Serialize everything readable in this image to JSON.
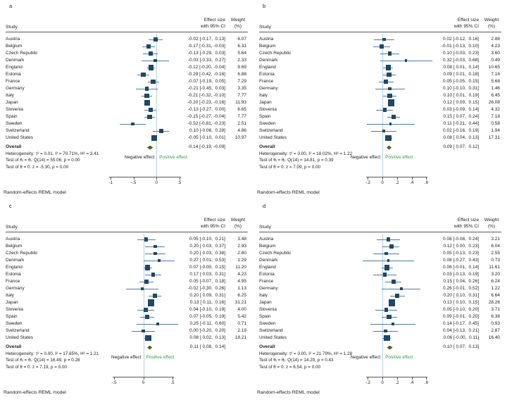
{
  "colors": {
    "marker": "#1e4866",
    "ci_line": "#4e7ca8",
    "zero_line": "#b5cfe3",
    "diamond": "#4f661e",
    "positive_label": "#2f9e3e",
    "text": "#1c1c1c",
    "axis": "#555555"
  },
  "chart_data": [
    {
      "type": "forest",
      "letter": "a",
      "study_header": "Study",
      "effect_header": [
        "Effect size",
        "with 95% CI"
      ],
      "weight_header": [
        "Weight",
        "(%)"
      ],
      "studies": [
        {
          "name": "Austria",
          "effect": -0.02,
          "lo": -0.17,
          "hi": 0.13,
          "weight": 6.07,
          "ci_text": "-0.02 [-0.17,  0.13]",
          "weight_text": "6.07"
        },
        {
          "name": "Belgium",
          "effect": -0.17,
          "lo": -0.31,
          "hi": -0.03,
          "weight": 6.31,
          "ci_text": "-0.17 [-0.31, -0.03]",
          "weight_text": "6.31"
        },
        {
          "name": "Czech Republic",
          "effect": -0.13,
          "lo": -0.29,
          "hi": 0.03,
          "weight": 5.64,
          "ci_text": "-0.13 [-0.29,  0.03]",
          "weight_text": "5.64"
        },
        {
          "name": "Denmark",
          "effect": -0.03,
          "lo": -0.33,
          "hi": 0.27,
          "weight": 2.33,
          "ci_text": "-0.03 [-0.33,  0.27]",
          "weight_text": "2.33"
        },
        {
          "name": "England",
          "effect": -0.12,
          "lo": -0.2,
          "hi": -0.04,
          "weight": 9.69,
          "ci_text": "-0.12 [-0.20, -0.04]",
          "weight_text": "9.69"
        },
        {
          "name": "Estonia",
          "effect": -0.29,
          "lo": -0.42,
          "hi": -0.16,
          "weight": 6.88,
          "ci_text": "-0.29 [-0.42, -0.16]",
          "weight_text": "6.88"
        },
        {
          "name": "France",
          "effect": -0.07,
          "lo": -0.19,
          "hi": 0.05,
          "weight": 7.29,
          "ci_text": "-0.07 [-0.19,  0.05]",
          "weight_text": "7.29"
        },
        {
          "name": "Germany",
          "effect": -0.21,
          "lo": -0.45,
          "hi": 0.03,
          "weight": 3.35,
          "ci_text": "-0.21 [-0.45,  0.03]",
          "weight_text": "3.35"
        },
        {
          "name": "Italy",
          "effect": -0.21,
          "lo": -0.32,
          "hi": -0.1,
          "weight": 7.77,
          "ci_text": "-0.21 [-0.32, -0.10]",
          "weight_text": "7.77"
        },
        {
          "name": "Japan",
          "effect": -0.2,
          "lo": -0.23,
          "hi": -0.16,
          "weight": 11.93,
          "ci_text": "-0.20 [-0.23, -0.16]",
          "weight_text": "11.93"
        },
        {
          "name": "Slovenia",
          "effect": -0.13,
          "lo": -0.27,
          "hi": 0.0,
          "weight": 6.65,
          "ci_text": "-0.13 [-0.27,  0.00]",
          "weight_text": "6.65"
        },
        {
          "name": "Spain",
          "effect": -0.15,
          "lo": -0.27,
          "hi": -0.04,
          "weight": 7.77,
          "ci_text": "-0.15 [-0.27, -0.04]",
          "weight_text": "7.77"
        },
        {
          "name": "Sweden",
          "effect": -0.52,
          "lo": -0.81,
          "hi": -0.23,
          "weight": 2.51,
          "ci_text": "-0.52 [-0.81, -0.23]",
          "weight_text": "2.51"
        },
        {
          "name": "Switzerland",
          "effect": 0.1,
          "lo": -0.08,
          "hi": 0.28,
          "weight": 4.86,
          "ci_text": " 0.10 [-0.08,  0.28]",
          "weight_text": "4.86"
        },
        {
          "name": "United States",
          "effect": -0.05,
          "lo": -0.1,
          "hi": 0.01,
          "weight": 10.97,
          "ci_text": "-0.05 [-0.10,  0.01]",
          "weight_text": "10.97"
        }
      ],
      "overall": {
        "label": "Overall",
        "effect": -0.14,
        "lo": -0.19,
        "hi": -0.09,
        "ci_text": "-0.14 [-0.19, -0.09]"
      },
      "stats": {
        "heterogeneity": "Heterogeneity: τ² = 0.01, I² = 70.71%, H² = 3.41",
        "test_group": "Test of θᵢ = θⱼ: Q(14) = 55.06, p = 0.00",
        "test_zero": "Test of θ = 0: z = -5.30, p = 0.00"
      },
      "direction_labels": {
        "negative": "Negative effect",
        "positive": "Positive effect"
      },
      "axis": {
        "min": -1.08,
        "max": 0.58,
        "ticks": [
          -1,
          -0.5,
          0,
          0.5
        ],
        "tick_labels": [
          "-1",
          "-.5",
          "0",
          ".5"
        ]
      },
      "footer": "Random-effects REML model"
    },
    {
      "type": "forest",
      "letter": "b",
      "study_header": "Study",
      "effect_header": [
        "Effect size",
        "with 95% CI"
      ],
      "weight_header": [
        "Weight",
        "(%)"
      ],
      "studies": [
        {
          "name": "Austria",
          "effect": 0.02,
          "lo": -0.12,
          "hi": 0.16,
          "weight": 2.88,
          "ci_text": " 0.02 [-0.12,  0.16]",
          "weight_text": "2.88"
        },
        {
          "name": "Belgium",
          "effect": -0.01,
          "lo": -0.13,
          "hi": 0.1,
          "weight": 4.23,
          "ci_text": "-0.01 [-0.13,  0.10]",
          "weight_text": "4.23"
        },
        {
          "name": "Czech Republic",
          "effect": 0.1,
          "lo": -0.03,
          "hi": 0.23,
          "weight": 3.6,
          "ci_text": " 0.10 [-0.03,  0.23]",
          "weight_text": "3.60"
        },
        {
          "name": "Denmark",
          "effect": 0.32,
          "lo": -0.03,
          "hi": 0.68,
          "weight": 0.49,
          "ci_text": " 0.32 [-0.03,  0.68]",
          "weight_text": "0.49"
        },
        {
          "name": "England",
          "effect": 0.08,
          "lo": 0.01,
          "hi": 0.14,
          "weight": 10.65,
          "ci_text": " 0.08 [ 0.01,  0.14]",
          "weight_text": "10.65"
        },
        {
          "name": "Estonia",
          "effect": 0.09,
          "lo": 0.01,
          "hi": 0.18,
          "weight": 7.16,
          "ci_text": " 0.09 [ 0.01,  0.18]",
          "weight_text": "7.16"
        },
        {
          "name": "France",
          "effect": 0.05,
          "lo": -0.05,
          "hi": 0.15,
          "weight": 5.68,
          "ci_text": " 0.05 [-0.05,  0.15]",
          "weight_text": "5.68"
        },
        {
          "name": "Germany",
          "effect": 0.1,
          "lo": -0.1,
          "hi": 0.31,
          "weight": 1.46,
          "ci_text": " 0.10 [-0.10,  0.31]",
          "weight_text": "1.46"
        },
        {
          "name": "Italy",
          "effect": 0.1,
          "lo": 0.01,
          "hi": 0.19,
          "weight": 6.45,
          "ci_text": " 0.10 [ 0.01,  0.19]",
          "weight_text": "6.45"
        },
        {
          "name": "Japan",
          "effect": 0.12,
          "lo": 0.09,
          "hi": 0.15,
          "weight": 26.08,
          "ci_text": " 0.12 [ 0.09,  0.15]",
          "weight_text": "26.08"
        },
        {
          "name": "Slovenia",
          "effect": 0.03,
          "lo": -0.09,
          "hi": 0.14,
          "weight": 4.32,
          "ci_text": " 0.03 [-0.09,  0.14]",
          "weight_text": "4.32"
        },
        {
          "name": "Spain",
          "effect": 0.15,
          "lo": 0.07,
          "hi": 0.24,
          "weight": 7.18,
          "ci_text": " 0.15 [ 0.07,  0.24]",
          "weight_text": "7.18"
        },
        {
          "name": "Sweden",
          "effect": 0.11,
          "lo": -0.21,
          "hi": 0.44,
          "weight": 0.58,
          "ci_text": " 0.11 [-0.21,  0.44]",
          "weight_text": "0.58"
        },
        {
          "name": "Switzerland",
          "effect": 0.02,
          "lo": -0.16,
          "hi": 0.19,
          "weight": 1.94,
          "ci_text": " 0.02 [-0.16,  0.19]",
          "weight_text": "1.94"
        },
        {
          "name": "United States",
          "effect": 0.08,
          "lo": 0.04,
          "hi": 0.13,
          "weight": 17.31,
          "ci_text": " 0.08 [ 0.04,  0.13]",
          "weight_text": "17.31"
        }
      ],
      "overall": {
        "label": "Overall",
        "effect": 0.09,
        "lo": 0.07,
        "hi": 0.12,
        "ci_text": " 0.09 [ 0.07,  0.12]"
      },
      "stats": {
        "heterogeneity": "Heterogeneity: τ² = 0.00, I² = 18.02%, H² = 1.22",
        "test_group": "Test of θᵢ = θⱼ: Q(14) = 14.81, p = 0.39",
        "test_zero": "Test of θ = 0: z = 7.09, p = 0.00"
      },
      "direction_labels": {
        "negative": "Negative effect",
        "positive": "Positive effect"
      },
      "axis": {
        "min": -0.3,
        "max": 0.74,
        "ticks": [
          -0.2,
          0,
          0.2,
          0.4,
          0.6
        ],
        "tick_labels": [
          "-.2",
          "0",
          ".2",
          ".4",
          ".6"
        ]
      },
      "footer": "Random-effects REML model"
    },
    {
      "type": "forest",
      "letter": "c",
      "study_header": "Study",
      "effect_header": [
        "Effect size",
        "with 95% CI"
      ],
      "weight_header": [
        "Weight",
        "(%)"
      ],
      "studies": [
        {
          "name": "Austria",
          "effect": 0.05,
          "lo": -0.1,
          "hi": 0.21,
          "weight": 3.48,
          "ci_text": " 0.05 [-0.10,  0.21]",
          "weight_text": "3.48"
        },
        {
          "name": "Belgium",
          "effect": 0.2,
          "lo": 0.03,
          "hi": 0.37,
          "weight": 2.93,
          "ci_text": " 0.20 [ 0.03,  0.37]",
          "weight_text": "2.93"
        },
        {
          "name": "Czech Republic",
          "effect": 0.2,
          "lo": 0.03,
          "hi": 0.38,
          "weight": 2.8,
          "ci_text": " 0.20 [ 0.03,  0.38]",
          "weight_text": "2.80"
        },
        {
          "name": "Denmark",
          "effect": 0.27,
          "lo": 0.01,
          "hi": 0.53,
          "weight": 1.29,
          "ci_text": " 0.27 [ 0.01,  0.53]",
          "weight_text": "1.29"
        },
        {
          "name": "England",
          "effect": 0.07,
          "lo": -0.0,
          "hi": 0.15,
          "weight": 11.2,
          "ci_text": " 0.07 [-0.00,  0.15]",
          "weight_text": "11.20"
        },
        {
          "name": "Estonia",
          "effect": 0.17,
          "lo": 0.03,
          "hi": 0.31,
          "weight": 4.23,
          "ci_text": " 0.17 [ 0.03,  0.31]",
          "weight_text": "4.23"
        },
        {
          "name": "France",
          "effect": 0.05,
          "lo": -0.07,
          "hi": 0.18,
          "weight": 4.95,
          "ci_text": " 0.05 [-0.07,  0.18]",
          "weight_text": "4.95"
        },
        {
          "name": "Germany",
          "effect": -0.02,
          "lo": -0.3,
          "hi": 0.26,
          "weight": 1.13,
          "ci_text": "-0.02 [-0.30,  0.26]",
          "weight_text": "1.13"
        },
        {
          "name": "Italy",
          "effect": 0.2,
          "lo": 0.09,
          "hi": 0.31,
          "weight": 6.25,
          "ci_text": " 0.20 [ 0.09,  0.31]",
          "weight_text": "6.25"
        },
        {
          "name": "Japan",
          "effect": 0.13,
          "lo": 0.11,
          "hi": 0.16,
          "weight": 31.21,
          "ci_text": " 0.13 [ 0.11,  0.16]",
          "weight_text": "31.21"
        },
        {
          "name": "Slovenia",
          "effect": 0.04,
          "lo": -0.1,
          "hi": 0.19,
          "weight": 4.0,
          "ci_text": " 0.04 [-0.10,  0.19]",
          "weight_text": "4.00"
        },
        {
          "name": "Spain",
          "effect": 0.07,
          "lo": -0.05,
          "hi": 0.19,
          "weight": 5.42,
          "ci_text": " 0.07 [-0.05,  0.19]",
          "weight_text": "5.42"
        },
        {
          "name": "Sweden",
          "effect": 0.25,
          "lo": -0.11,
          "hi": 0.6,
          "weight": 0.71,
          "ci_text": " 0.25 [-0.11,  0.60]",
          "weight_text": "0.71"
        },
        {
          "name": "Switzerland",
          "effect": 0.0,
          "lo": -0.2,
          "hi": 0.2,
          "weight": 2.19,
          "ci_text": " 0.00 [-0.20,  0.20]",
          "weight_text": "2.19"
        },
        {
          "name": "United States",
          "effect": 0.08,
          "lo": 0.02,
          "hi": 0.13,
          "weight": 18.21,
          "ci_text": " 0.08 [ 0.02,  0.13]",
          "weight_text": "18.21"
        }
      ],
      "overall": {
        "label": "Overall",
        "effect": 0.11,
        "lo": 0.08,
        "hi": 0.14,
        "ci_text": " 0.11 [ 0.08,  0.14]"
      },
      "stats": {
        "heterogeneity": "Heterogeneity: τ² = 0.00, I² = 17.65%, H² = 1.21",
        "test_group": "Test of θᵢ = θⱼ: Q(14) = 16.49, p = 0.28",
        "test_zero": "Test of θ = 0: z = 7.19, p = 0.00"
      },
      "direction_labels": {
        "negative": "Negative effect",
        "positive": "Positive effect"
      },
      "axis": {
        "min": -0.62,
        "max": 0.68,
        "ticks": [
          -0.5,
          0,
          0.5
        ],
        "tick_labels": [
          "-.5",
          "0",
          ".5"
        ]
      },
      "footer": "Random-effects REML model"
    },
    {
      "type": "forest",
      "letter": "d",
      "study_header": "Study",
      "effect_header": [
        "Effect size",
        "with 95% CI"
      ],
      "weight_header": [
        "Weight",
        "(%)"
      ],
      "studies": [
        {
          "name": "Austria",
          "effect": 0.08,
          "lo": -0.08,
          "hi": 0.24,
          "weight": 3.21,
          "ci_text": " 0.08 [-0.08,  0.24]",
          "weight_text": "3.21"
        },
        {
          "name": "Belgium",
          "effect": 0.12,
          "lo": 0.0,
          "hi": 0.23,
          "weight": 6.04,
          "ci_text": " 0.12 [ 0.00,  0.23]",
          "weight_text": "6.04"
        },
        {
          "name": "Czech Republic",
          "effect": 0.05,
          "lo": -0.13,
          "hi": 0.23,
          "weight": 2.55,
          "ci_text": " 0.05 [-0.13,  0.23]",
          "weight_text": "2.55"
        },
        {
          "name": "Denmark",
          "effect": 0.08,
          "lo": -0.27,
          "hi": 0.43,
          "weight": 0.73,
          "ci_text": " 0.08 [-0.27,  0.43]",
          "weight_text": "0.73"
        },
        {
          "name": "England",
          "effect": 0.06,
          "lo": -0.01,
          "hi": 0.14,
          "weight": 11.61,
          "ci_text": " 0.06 [-0.01,  0.14]",
          "weight_text": "11.61"
        },
        {
          "name": "Estonia",
          "effect": 0.03,
          "lo": -0.13,
          "hi": 0.19,
          "weight": 3.2,
          "ci_text": " 0.03 [-0.13,  0.19]",
          "weight_text": "3.20"
        },
        {
          "name": "France",
          "effect": 0.15,
          "lo": 0.04,
          "hi": 0.26,
          "weight": 6.24,
          "ci_text": " 0.15 [ 0.04,  0.26]",
          "weight_text": "6.24"
        },
        {
          "name": "Germany",
          "effect": 0.26,
          "lo": -0.01,
          "hi": 0.52,
          "weight": 1.22,
          "ci_text": " 0.26 [-0.01,  0.52]",
          "weight_text": "1.22"
        },
        {
          "name": "Italy",
          "effect": 0.2,
          "lo": 0.1,
          "hi": 0.31,
          "weight": 6.64,
          "ci_text": " 0.20 [ 0.10,  0.31]",
          "weight_text": "6.64"
        },
        {
          "name": "Japan",
          "effect": 0.13,
          "lo": 0.1,
          "hi": 0.15,
          "weight": 28.26,
          "ci_text": " 0.13 [ 0.10,  0.15]",
          "weight_text": "28.26"
        },
        {
          "name": "Slovenia",
          "effect": 0.05,
          "lo": -0.1,
          "hi": 0.2,
          "weight": 3.71,
          "ci_text": " 0.05 [-0.10,  0.20]",
          "weight_text": "3.71"
        },
        {
          "name": "Spain",
          "effect": 0.09,
          "lo": -0.01,
          "hi": 0.2,
          "weight": 6.38,
          "ci_text": " 0.09 [-0.01,  0.20]",
          "weight_text": "6.38"
        },
        {
          "name": "Sweden",
          "effect": 0.14,
          "lo": -0.17,
          "hi": 0.45,
          "weight": 0.93,
          "ci_text": " 0.14 [-0.17,  0.45]",
          "weight_text": "0.93"
        },
        {
          "name": "Switzerland",
          "effect": 0.04,
          "lo": -0.13,
          "hi": 0.21,
          "weight": 2.87,
          "ci_text": " 0.04 [-0.13,  0.21]",
          "weight_text": "2.87"
        },
        {
          "name": "United States",
          "effect": 0.06,
          "lo": -0.0,
          "hi": 0.11,
          "weight": 16.4,
          "ci_text": " 0.06 [-0.00,  0.11]",
          "weight_text": "16.40"
        }
      ],
      "overall": {
        "label": "Overall",
        "effect": 0.1,
        "lo": 0.07,
        "hi": 0.13,
        "ci_text": " 0.10 [ 0.07,  0.13]"
      },
      "stats": {
        "heterogeneity": "Heterogeneity: τ² = 0.00, I² = 21.79%, H² = 1.28",
        "test_group": "Test of θᵢ = θⱼ: Q(14) = 14.29, p = 0.43",
        "test_zero": "Test of θ = 0: z = 6.54, p = 0.00"
      },
      "direction_labels": {
        "negative": "Negative effect",
        "positive": "Positive effect"
      },
      "axis": {
        "min": -0.3,
        "max": 0.74,
        "ticks": [
          -0.2,
          0,
          0.2,
          0.4,
          0.6
        ],
        "tick_labels": [
          "-.2",
          "0",
          ".2",
          ".4",
          ".6"
        ]
      },
      "footer": "Random-effects REML model"
    }
  ]
}
